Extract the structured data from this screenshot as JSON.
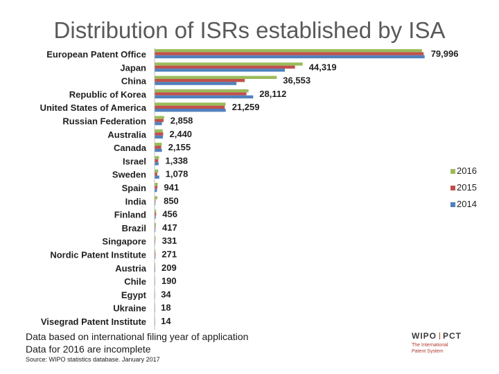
{
  "slide": {
    "title": "Distribution of ISRs established by ISA",
    "note_1": "Data based on international filing year of application",
    "note_2": "Data for 2016 are incomplete",
    "source": "Source: WIPO statistics database. January 2017"
  },
  "logo": {
    "left": "WIPO",
    "right": "PCT",
    "tagline_1": "The International",
    "tagline_2": "Patent System"
  },
  "colors": {
    "2016": "#9bbb59",
    "2015": "#c0504d",
    "2014": "#4f81bd"
  },
  "chart_data": {
    "type": "bar",
    "orientation": "horizontal",
    "title": "Distribution of ISRs established by ISA",
    "legend_position": "right",
    "xlim": [
      0,
      85000
    ],
    "categories": [
      "European Patent Office",
      "Japan",
      "China",
      "Republic of Korea",
      "United States of America",
      "Russian Federation",
      "Australia",
      "Canada",
      "Israel",
      "Sweden",
      "Spain",
      "India",
      "Finland",
      "Brazil",
      "Singapore",
      "Nordic Patent Institute",
      "Austria",
      "Chile",
      "Egypt",
      "Ukraine",
      "Visegrad Patent Institute"
    ],
    "data_labels": [
      "79,996",
      "44,319",
      "36,553",
      "28,112",
      "21,259",
      "2,858",
      "2,440",
      "2,155",
      "1,338",
      "1,078",
      "941",
      "850",
      "456",
      "417",
      "331",
      "271",
      "209",
      "190",
      "34",
      "18",
      "14"
    ],
    "series": [
      {
        "name": "2016",
        "values": [
          79996,
          44319,
          36553,
          28112,
          21259,
          2858,
          2440,
          2155,
          1338,
          1078,
          941,
          850,
          456,
          417,
          331,
          271,
          209,
          190,
          34,
          18,
          14
        ]
      },
      {
        "name": "2015",
        "values": [
          80500,
          42000,
          27000,
          27500,
          21000,
          2700,
          2600,
          2000,
          1100,
          800,
          850,
          300,
          480,
          300,
          220,
          280,
          200,
          170,
          40,
          25,
          15
        ]
      },
      {
        "name": "2014",
        "values": [
          80800,
          39000,
          24500,
          29500,
          21300,
          2200,
          2500,
          2200,
          1200,
          1400,
          700,
          250,
          350,
          250,
          150,
          260,
          200,
          150,
          45,
          30,
          20
        ]
      }
    ]
  }
}
